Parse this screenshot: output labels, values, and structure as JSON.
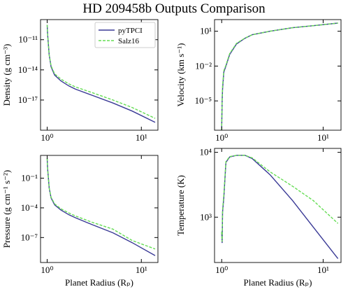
{
  "title": "HD 209458b Outputs Comparison",
  "chart_data": [
    {
      "type": "line",
      "ylabel": "Density (g cm⁻³)",
      "xscale": "log",
      "yscale": "log",
      "legend": "upper right",
      "x": [
        1.0,
        1.01,
        1.02,
        1.05,
        1.1,
        1.2,
        1.4,
        1.7,
        2,
        3,
        5,
        8,
        14
      ],
      "xlim": [
        0.85,
        15
      ],
      "xticks": [
        {
          "value": 1,
          "label": "10⁰"
        },
        {
          "value": 10,
          "label": "10¹"
        }
      ],
      "ylim": [
        1e-20,
        1e-09
      ],
      "yticks": [
        {
          "value": 1e-17,
          "label": "10⁻¹⁷"
        },
        {
          "value": 1e-14,
          "label": "10⁻¹⁴"
        },
        {
          "value": 1e-11,
          "label": "10⁻¹¹"
        }
      ],
      "series": [
        {
          "name": "pyTPCI",
          "color": "#3a3a96",
          "linestyle": "solid",
          "values": [
            3e-10,
            4e-11,
            1e-11,
            3e-13,
            2e-14,
            3e-15,
            8e-16,
            2.5e-16,
            1.2e-16,
            3e-17,
            5e-18,
            8e-19,
            6e-20
          ]
        },
        {
          "name": "Salz16",
          "color": "#66dd55",
          "linestyle": "dashed",
          "values": [
            3e-10,
            4e-11,
            1e-11,
            3e-13,
            2.5e-14,
            4e-15,
            1.2e-15,
            4e-16,
            2e-16,
            5.5e-17,
            1e-17,
            1.8e-18,
            1.5e-19
          ]
        }
      ]
    },
    {
      "type": "line",
      "ylabel": "Velocity (km s⁻¹)",
      "xscale": "log",
      "yscale": "log",
      "x": [
        1.0,
        1.01,
        1.02,
        1.05,
        1.1,
        1.2,
        1.4,
        1.7,
        2,
        3,
        5,
        8,
        14
      ],
      "xlim": [
        0.85,
        15
      ],
      "xticks": [
        {
          "value": 1,
          "label": "10⁰"
        },
        {
          "value": 10,
          "label": "10¹"
        }
      ],
      "ylim": [
        3e-08,
        100
      ],
      "yticks": [
        {
          "value": 1e-05,
          "label": "10⁻⁵"
        },
        {
          "value": 0.01,
          "label": "10⁻²"
        },
        {
          "value": 10,
          "label": "10¹"
        }
      ],
      "series": [
        {
          "color": "#3a3a96",
          "linestyle": "solid",
          "values": [
            3e-08,
            1e-05,
            0.0001,
            0.003,
            0.01,
            0.1,
            0.8,
            2.5,
            5,
            10,
            20,
            30,
            50
          ]
        },
        {
          "color": "#66dd55",
          "linestyle": "dashed",
          "values": [
            3e-08,
            2e-05,
            0.0002,
            0.004,
            0.012,
            0.12,
            0.9,
            2.6,
            5,
            10,
            20,
            30,
            50
          ]
        }
      ]
    },
    {
      "type": "line",
      "ylabel": "Pressure (g cm⁻¹ s⁻²)",
      "xlabel": "Planet Radius (Rₚ)",
      "xscale": "log",
      "yscale": "log",
      "x": [
        1.0,
        1.01,
        1.02,
        1.05,
        1.1,
        1.2,
        1.4,
        1.7,
        2,
        3,
        5,
        8,
        14
      ],
      "xlim": [
        0.85,
        15
      ],
      "xticks": [
        {
          "value": 1,
          "label": "10⁰"
        },
        {
          "value": 10,
          "label": "10¹"
        }
      ],
      "ylim": [
        3e-10,
        20
      ],
      "yticks": [
        {
          "value": 1e-07,
          "label": "10⁻⁷"
        },
        {
          "value": 0.0001,
          "label": "10⁻⁴"
        },
        {
          "value": 0.1,
          "label": "10⁻¹"
        }
      ],
      "series": [
        {
          "color": "#3a3a96",
          "linestyle": "solid",
          "values": [
            10,
            1,
            0.3,
            0.01,
            0.001,
            0.0002,
            6e-05,
            2e-05,
            1e-05,
            2e-06,
            3e-07,
            3e-08,
            1.5e-09
          ]
        },
        {
          "color": "#66dd55",
          "linestyle": "dashed",
          "values": [
            10,
            1,
            0.3,
            0.01,
            0.0012,
            0.00025,
            8e-05,
            3e-05,
            1.5e-05,
            3.5e-06,
            7e-07,
            5e-08,
            7e-09
          ]
        }
      ]
    },
    {
      "type": "line",
      "ylabel": "Temperature (K)",
      "xlabel": "Planet Radius (Rₚ)",
      "xscale": "log",
      "yscale": "log",
      "x": [
        1.0,
        1.01,
        1.02,
        1.05,
        1.1,
        1.2,
        1.4,
        1.7,
        2,
        3,
        5,
        8,
        14
      ],
      "xlim": [
        0.85,
        15
      ],
      "xticks": [
        {
          "value": 1,
          "label": "10⁰"
        },
        {
          "value": 10,
          "label": "10¹"
        }
      ],
      "ylim": [
        200,
        11500
      ],
      "yticks": [
        {
          "value": 1000,
          "label": "10³"
        },
        {
          "value": 10000,
          "label": "10⁴"
        }
      ],
      "series": [
        {
          "color": "#3a3a96",
          "linestyle": "solid",
          "values": [
            600,
            400,
            1200,
            2000,
            7000,
            8500,
            9000,
            9000,
            8000,
            4500,
            1800,
            700,
            230
          ]
        },
        {
          "color": "#66dd55",
          "linestyle": "dashed",
          "values": [
            600,
            420,
            1300,
            2200,
            7200,
            8600,
            9000,
            9000,
            8200,
            5000,
            3000,
            1800,
            800
          ]
        }
      ]
    }
  ]
}
